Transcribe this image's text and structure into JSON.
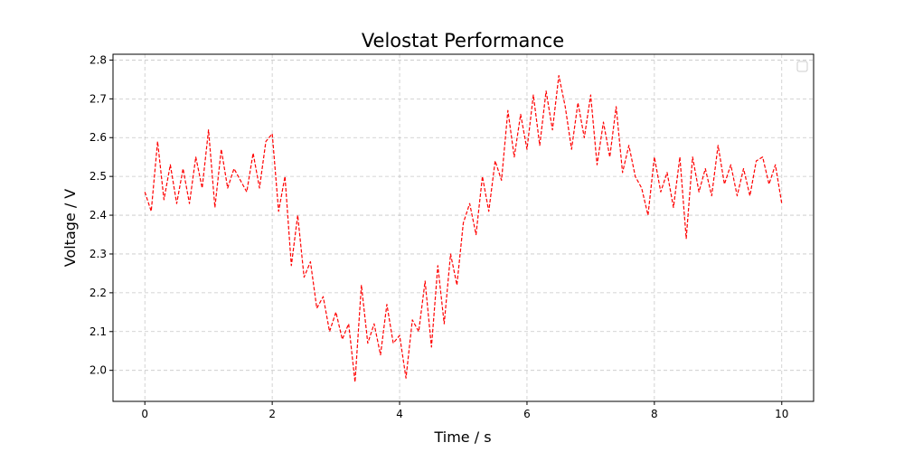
{
  "chart_data": {
    "type": "line",
    "title": "Velostat Performance",
    "xlabel": "Time / s",
    "ylabel": "Voltage / V",
    "xlim": [
      -0.5,
      10.5
    ],
    "ylim": [
      1.92,
      2.815
    ],
    "xticks": [
      0,
      2,
      4,
      6,
      8,
      10
    ],
    "yticks": [
      2.0,
      2.1,
      2.2,
      2.3,
      2.4,
      2.5,
      2.6,
      2.7,
      2.8
    ],
    "xtick_labels": [
      "0",
      "2",
      "4",
      "6",
      "8",
      "10"
    ],
    "ytick_labels": [
      "2.0",
      "2.1",
      "2.2",
      "2.3",
      "2.4",
      "2.5",
      "2.6",
      "2.7",
      "2.8"
    ],
    "grid": true,
    "legend": "top-right (empty)",
    "series": [
      {
        "color": "#ff0000",
        "linestyle": "dashed",
        "x": [
          0.0,
          0.1,
          0.2,
          0.3,
          0.4,
          0.5,
          0.6,
          0.7,
          0.8,
          0.9,
          1.0,
          1.1,
          1.2,
          1.3,
          1.4,
          1.5,
          1.6,
          1.7,
          1.8,
          1.9,
          2.0,
          2.1,
          2.2,
          2.3,
          2.4,
          2.5,
          2.6,
          2.7,
          2.8,
          2.9,
          3.0,
          3.1,
          3.2,
          3.3,
          3.4,
          3.5,
          3.6,
          3.7,
          3.8,
          3.9,
          4.0,
          4.1,
          4.2,
          4.3,
          4.4,
          4.5,
          4.6,
          4.7,
          4.8,
          4.9,
          5.0,
          5.1,
          5.2,
          5.3,
          5.4,
          5.5,
          5.6,
          5.7,
          5.8,
          5.9,
          6.0,
          6.1,
          6.2,
          6.3,
          6.4,
          6.5,
          6.6,
          6.7,
          6.8,
          6.9,
          7.0,
          7.1,
          7.2,
          7.3,
          7.4,
          7.5,
          7.6,
          7.7,
          7.8,
          7.9,
          8.0,
          8.1,
          8.2,
          8.3,
          8.4,
          8.5,
          8.6,
          8.7,
          8.8,
          8.9,
          9.0,
          9.1,
          9.2,
          9.3,
          9.4,
          9.5,
          9.6,
          9.7,
          9.8,
          9.9,
          10.0
        ],
        "y": [
          2.46,
          2.41,
          2.59,
          2.44,
          2.53,
          2.43,
          2.52,
          2.43,
          2.55,
          2.47,
          2.62,
          2.42,
          2.57,
          2.47,
          2.52,
          2.49,
          2.46,
          2.56,
          2.47,
          2.59,
          2.61,
          2.41,
          2.5,
          2.27,
          2.4,
          2.24,
          2.28,
          2.16,
          2.19,
          2.1,
          2.15,
          2.08,
          2.12,
          1.97,
          2.22,
          2.07,
          2.12,
          2.04,
          2.17,
          2.07,
          2.09,
          1.98,
          2.13,
          2.1,
          2.23,
          2.06,
          2.27,
          2.12,
          2.3,
          2.22,
          2.38,
          2.43,
          2.35,
          2.5,
          2.41,
          2.54,
          2.49,
          2.67,
          2.55,
          2.66,
          2.57,
          2.71,
          2.58,
          2.72,
          2.62,
          2.76,
          2.68,
          2.57,
          2.69,
          2.6,
          2.71,
          2.53,
          2.64,
          2.55,
          2.68,
          2.51,
          2.58,
          2.5,
          2.47,
          2.4,
          2.55,
          2.46,
          2.51,
          2.42,
          2.55,
          2.34,
          2.55,
          2.46,
          2.52,
          2.45,
          2.58,
          2.48,
          2.53,
          2.45,
          2.52,
          2.45,
          2.54,
          2.55,
          2.48,
          2.53,
          2.43
        ]
      }
    ]
  }
}
